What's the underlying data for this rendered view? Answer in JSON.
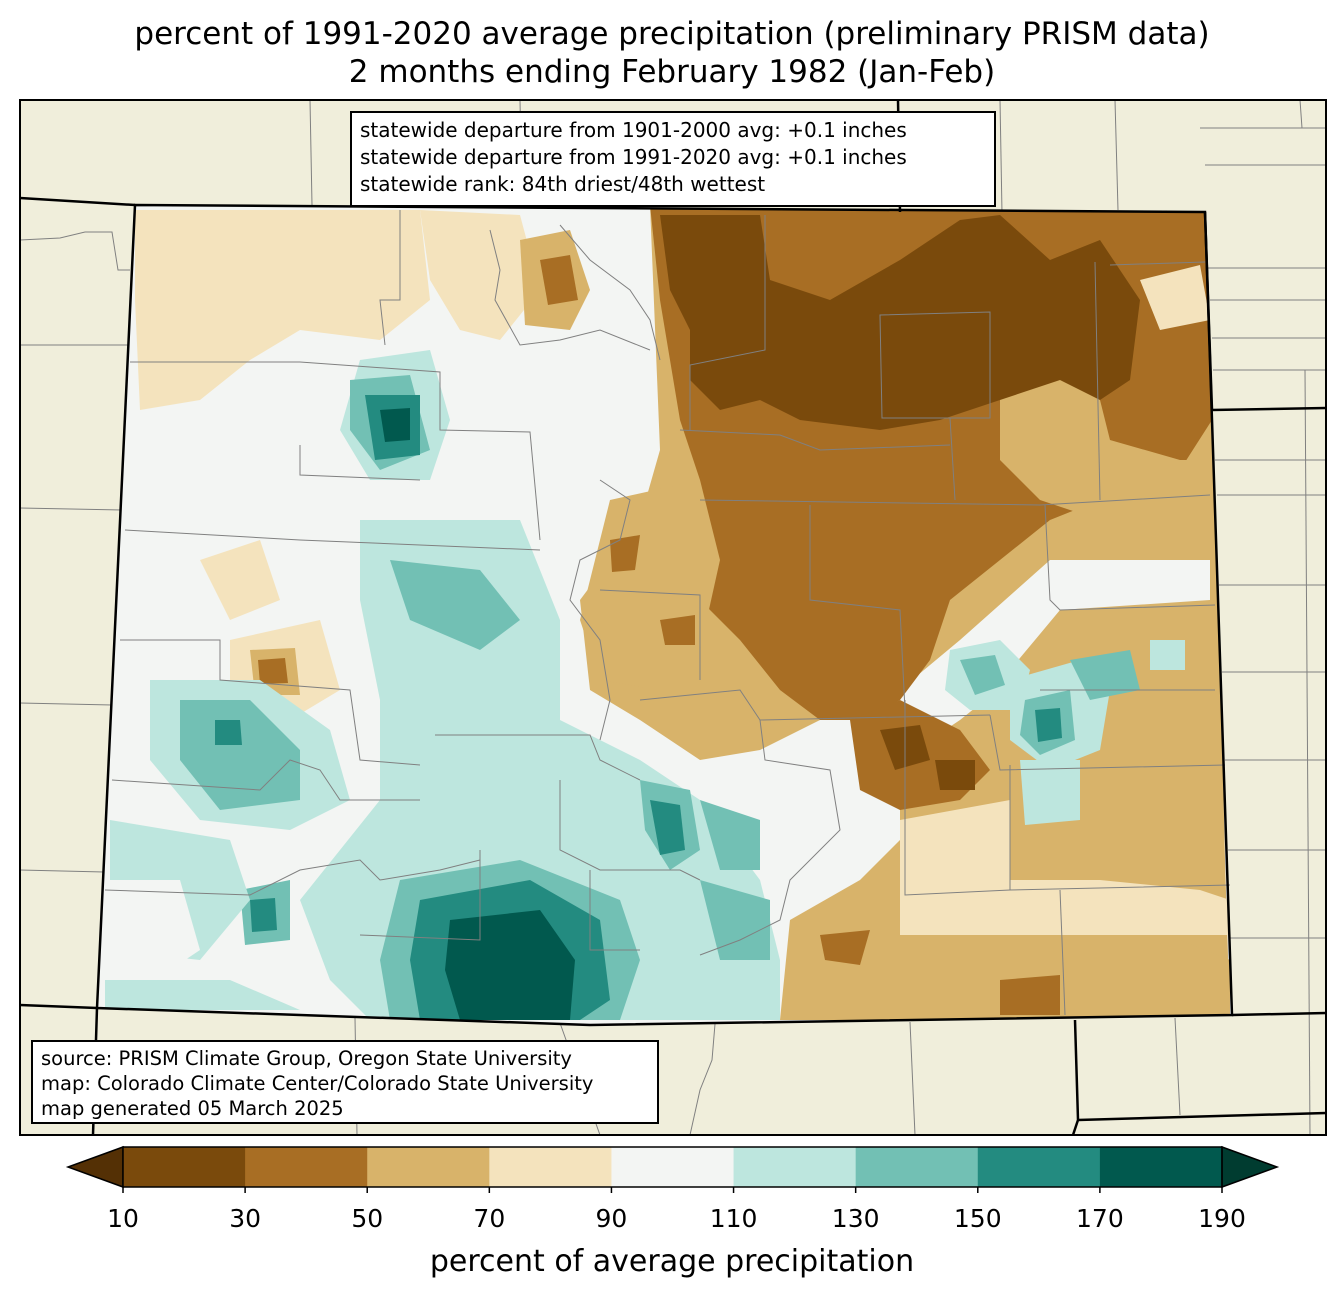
{
  "title": {
    "line1": "percent of 1991-2020 average precipitation (preliminary PRISM data)",
    "line2": "2 months ending February 1982 (Jan-Feb)"
  },
  "stats_box": {
    "line1": "statewide departure from 1901-2000 avg: +0.1 inches",
    "line2": "statewide departure from 1991-2020 avg: +0.1 inches",
    "line3": "statewide rank: 84th driest/48th wettest"
  },
  "source_box": {
    "line1": "source: PRISM Climate Group, Oregon State University",
    "line2": "map: Colorado Climate Center/Colorado State University",
    "line3": "map generated 05 March 2025"
  },
  "colorbar": {
    "label": "percent of average precipitation",
    "ticks": [
      "10",
      "30",
      "50",
      "70",
      "90",
      "110",
      "130",
      "150",
      "170",
      "190"
    ],
    "colors": [
      "#543005",
      "#7a4a0c",
      "#a86e24",
      "#d8b36a",
      "#f4e3bd",
      "#f3f5f3",
      "#bde6de",
      "#72c0b4",
      "#238b80",
      "#01594e",
      "#003c30"
    ]
  },
  "map_colors": {
    "background": "#f0eedb",
    "state_border": "#000000",
    "county_line": "#808080"
  }
}
